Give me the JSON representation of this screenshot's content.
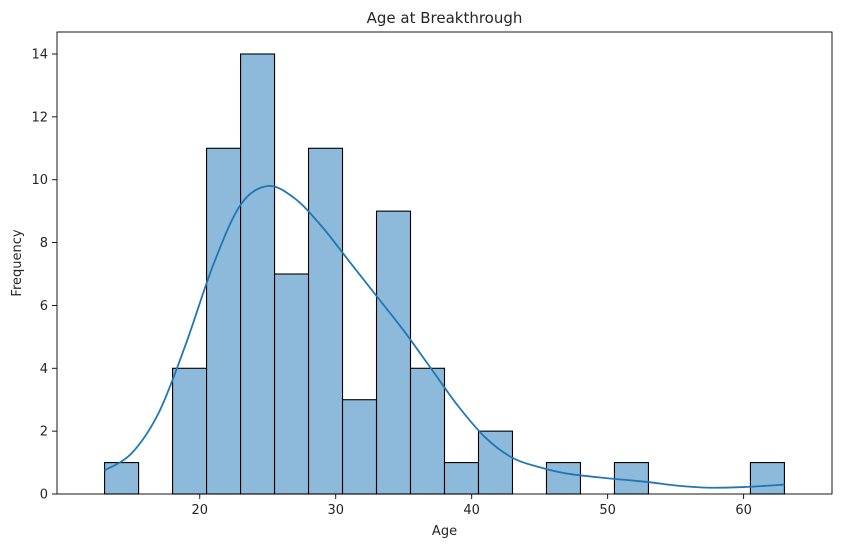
{
  "chart_data": {
    "type": "histogram",
    "title": "Age at Breakthrough",
    "xlabel": "Age",
    "ylabel": "Frequency",
    "xlim": [
      9.5,
      66.5
    ],
    "ylim": [
      0,
      14.7
    ],
    "xticks": [
      20,
      30,
      40,
      50,
      60
    ],
    "yticks": [
      0,
      2,
      4,
      6,
      8,
      10,
      12,
      14
    ],
    "bin_width": 2.5,
    "bins": [
      {
        "start": 13.0,
        "end": 15.5,
        "count": 1
      },
      {
        "start": 15.5,
        "end": 18.0,
        "count": 0
      },
      {
        "start": 18.0,
        "end": 20.5,
        "count": 4
      },
      {
        "start": 20.5,
        "end": 23.0,
        "count": 11
      },
      {
        "start": 23.0,
        "end": 25.5,
        "count": 14
      },
      {
        "start": 25.5,
        "end": 28.0,
        "count": 7
      },
      {
        "start": 28.0,
        "end": 30.5,
        "count": 11
      },
      {
        "start": 30.5,
        "end": 33.0,
        "count": 3
      },
      {
        "start": 33.0,
        "end": 35.5,
        "count": 9
      },
      {
        "start": 35.5,
        "end": 38.0,
        "count": 4
      },
      {
        "start": 38.0,
        "end": 40.5,
        "count": 1
      },
      {
        "start": 40.5,
        "end": 43.0,
        "count": 2
      },
      {
        "start": 43.0,
        "end": 45.5,
        "count": 0
      },
      {
        "start": 45.5,
        "end": 48.0,
        "count": 1
      },
      {
        "start": 48.0,
        "end": 50.5,
        "count": 0
      },
      {
        "start": 50.5,
        "end": 53.0,
        "count": 1
      },
      {
        "start": 53.0,
        "end": 55.5,
        "count": 0
      },
      {
        "start": 55.5,
        "end": 58.0,
        "count": 0
      },
      {
        "start": 58.0,
        "end": 60.5,
        "count": 0
      },
      {
        "start": 60.5,
        "end": 63.0,
        "count": 1
      }
    ],
    "kde": {
      "x": [
        13,
        15,
        17,
        19,
        21,
        23,
        25,
        27,
        29,
        31,
        33,
        35,
        37,
        39,
        41,
        43,
        45,
        47,
        50,
        53,
        55,
        57.5,
        60,
        63
      ],
      "y": [
        0.75,
        1.3,
        2.6,
        4.8,
        7.3,
        9.2,
        9.8,
        9.4,
        8.5,
        7.4,
        6.3,
        5.2,
        4.0,
        2.8,
        1.8,
        1.15,
        0.85,
        0.65,
        0.5,
        0.38,
        0.27,
        0.2,
        0.22,
        0.3
      ]
    },
    "grid": false,
    "legend": false,
    "colors": {
      "bar_fill": "#8db9da",
      "bar_edge": "#000000",
      "kde_line": "#1f77b4",
      "axes": "#000000",
      "text": "#262626"
    }
  }
}
